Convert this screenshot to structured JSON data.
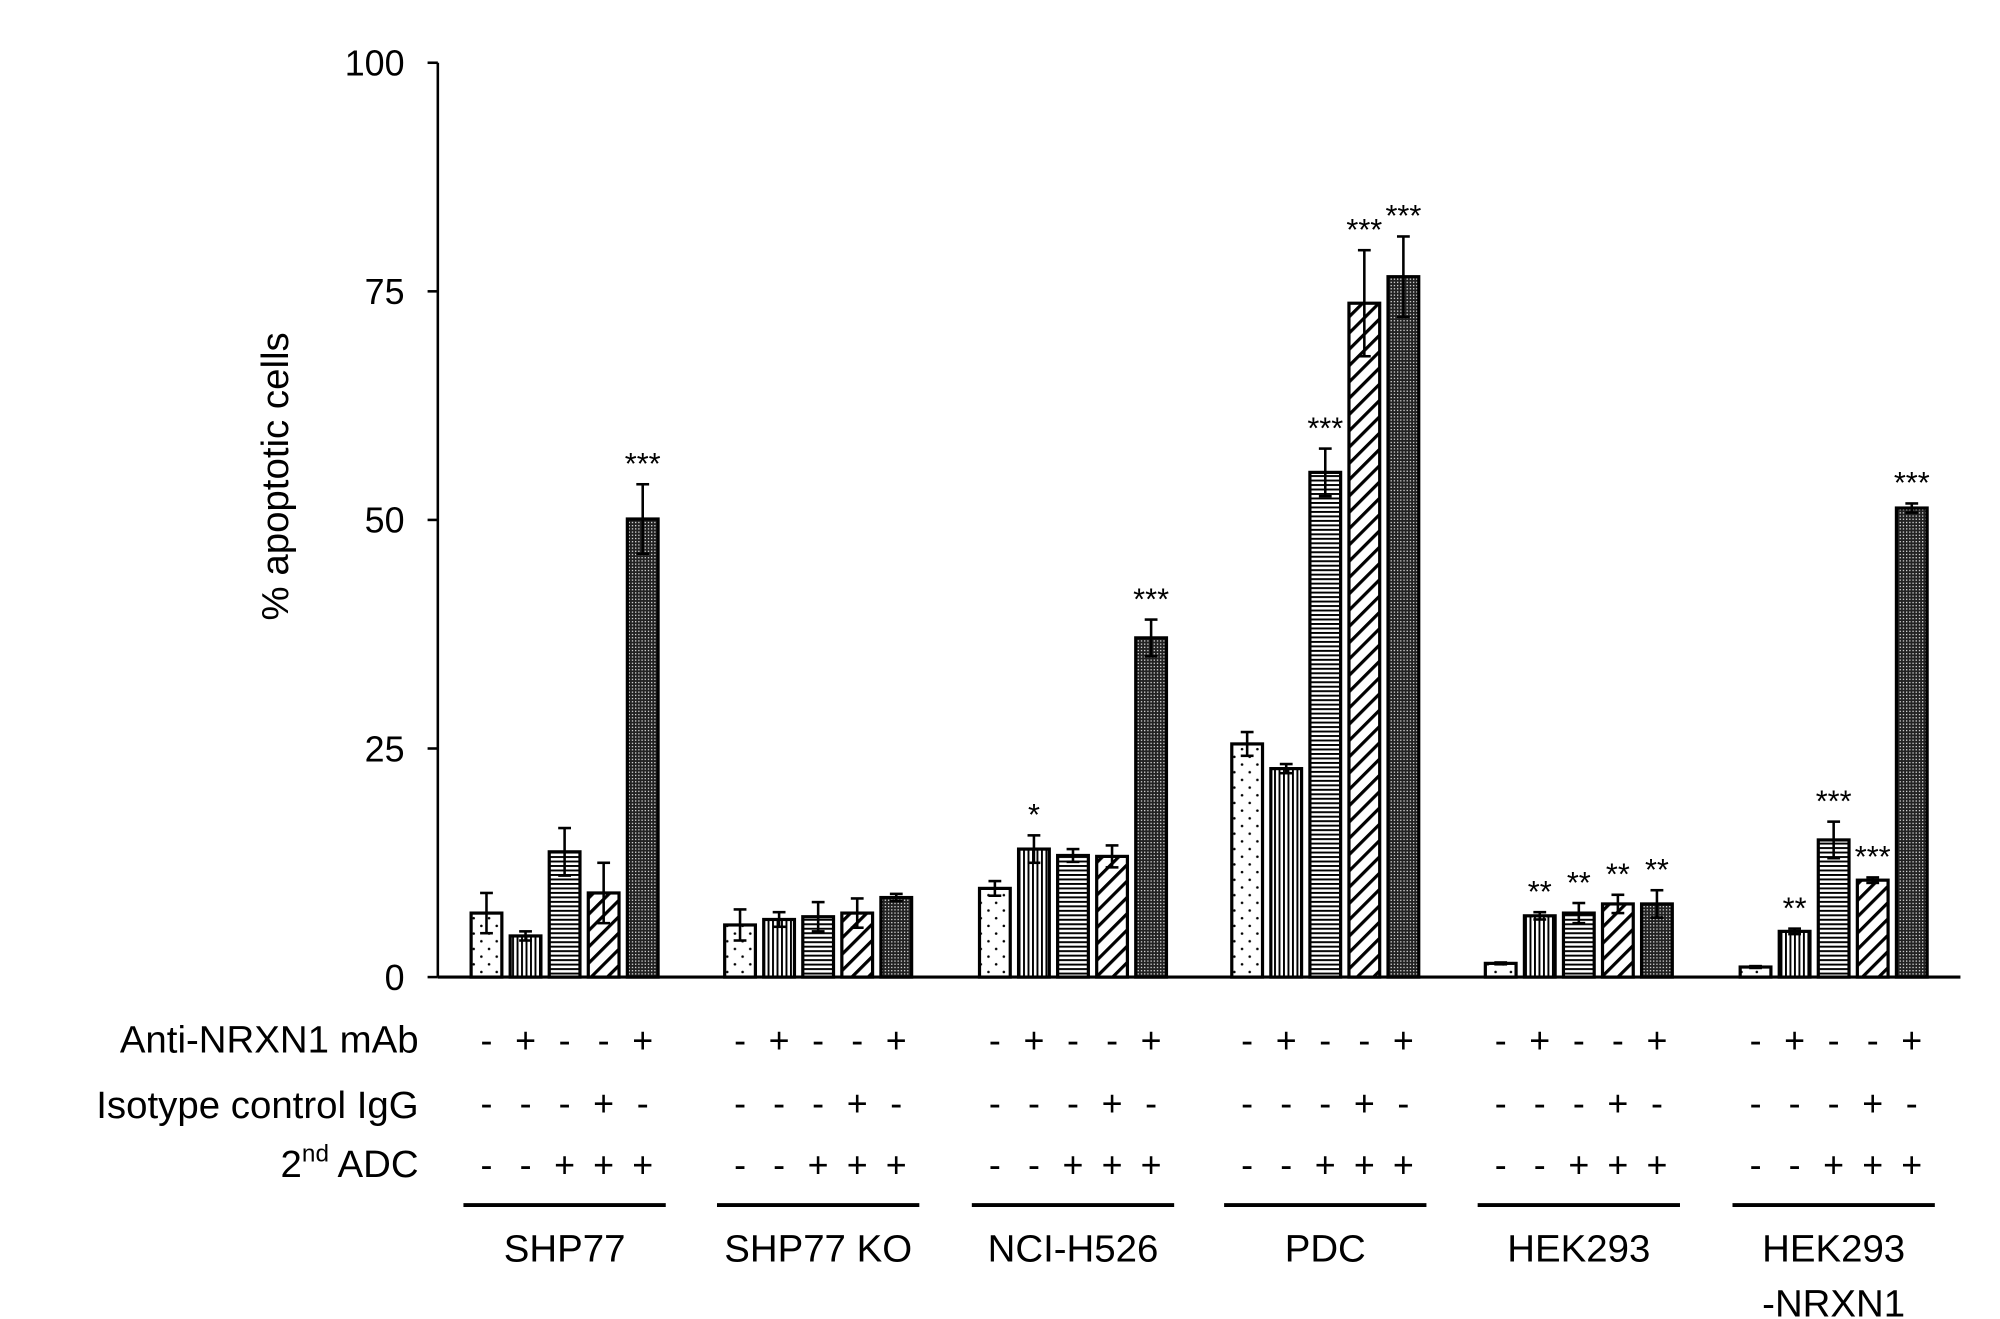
{
  "chart_data": {
    "type": "bar",
    "ylabel": "% apoptotic cells",
    "ylim": [
      0,
      100
    ],
    "yticks": [
      0,
      25,
      50,
      75,
      100
    ],
    "grid": false,
    "categories": [
      "SHP77",
      "SHP77 KO",
      "NCI-H526",
      "PDC",
      "HEK293",
      "HEK293\n-NRXN1"
    ],
    "category_lines": [
      [
        "SHP77"
      ],
      [
        "SHP77 KO"
      ],
      [
        "NCI-H526"
      ],
      [
        "PDC"
      ],
      [
        "HEK293"
      ],
      [
        "HEK293",
        "-NRXN1"
      ]
    ],
    "conditions": {
      "rows": [
        {
          "label": "Anti-NRXN1 mAb",
          "signs": [
            "-",
            "+",
            "-",
            "-",
            "+"
          ]
        },
        {
          "label": "Isotype control IgG",
          "signs": [
            "-",
            "-",
            "-",
            "+",
            "-"
          ]
        },
        {
          "label_main": "2",
          "label_sup": "nd",
          "label_rest": " ADC",
          "label": "2nd ADC",
          "signs": [
            "-",
            "-",
            "+",
            "+",
            "+"
          ]
        }
      ]
    },
    "bar_patterns": [
      "sparse-dots",
      "vertical-lines",
      "horizontal-lines",
      "diagonal-hatch",
      "dense-dots"
    ],
    "series": [
      {
        "values": [
          7.0,
          5.7,
          9.7,
          25.5,
          1.5,
          1.1
        ],
        "errors": [
          2.2,
          1.7,
          0.8,
          1.3,
          0.1,
          0.1
        ],
        "significance": [
          "",
          "",
          "",
          "",
          "",
          ""
        ]
      },
      {
        "values": [
          4.5,
          6.3,
          14.0,
          22.8,
          6.7,
          5.0
        ],
        "errors": [
          0.5,
          0.8,
          1.5,
          0.5,
          0.4,
          0.3
        ],
        "significance": [
          "",
          "",
          "*",
          "",
          "**",
          "**"
        ]
      },
      {
        "values": [
          13.7,
          6.6,
          13.3,
          55.2,
          7.0,
          15.0
        ],
        "errors": [
          2.6,
          1.6,
          0.7,
          2.6,
          1.1,
          2.0
        ],
        "significance": [
          "",
          "",
          "",
          "***",
          "**",
          "***"
        ]
      },
      {
        "values": [
          9.2,
          7.0,
          13.2,
          73.7,
          8.0,
          10.6
        ],
        "errors": [
          3.3,
          1.6,
          1.2,
          5.8,
          1.0,
          0.3
        ],
        "significance": [
          "",
          "",
          "",
          "***",
          "**",
          "***"
        ]
      },
      {
        "values": [
          50.1,
          8.7,
          37.1,
          76.6,
          8.0,
          51.3
        ],
        "errors": [
          3.8,
          0.4,
          2.0,
          4.4,
          1.5,
          0.5
        ],
        "significance": [
          "***",
          "",
          "***",
          "***",
          "**",
          "***"
        ]
      }
    ]
  }
}
